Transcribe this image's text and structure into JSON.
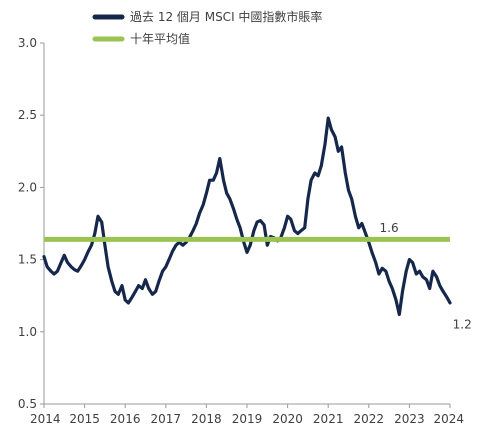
{
  "chart_data": {
    "type": "line",
    "title": "",
    "xlabel": "",
    "ylabel": "",
    "xlim": [
      2014,
      2024
    ],
    "ylim": [
      0.5,
      3.0
    ],
    "grid": false,
    "legend_position": "top-left",
    "x_ticks": [
      "2014",
      "2015",
      "2016",
      "2017",
      "2018",
      "2019",
      "2020",
      "2021",
      "2022",
      "2023",
      "2024"
    ],
    "y_ticks": [
      "0.5",
      "1.0",
      "1.5",
      "2.0",
      "2.5",
      "3.0"
    ],
    "colors": {
      "pb": "#15284b",
      "avg": "#9bc353",
      "text": "#3f3f3f",
      "axis": "#9a9a9a"
    },
    "series": [
      {
        "name": "過去 12 個月 MSCI 中國指數市賬率",
        "key": "pb",
        "points": [
          [
            2014.0,
            1.52
          ],
          [
            2014.08,
            1.45
          ],
          [
            2014.17,
            1.42
          ],
          [
            2014.25,
            1.4
          ],
          [
            2014.33,
            1.42
          ],
          [
            2014.42,
            1.48
          ],
          [
            2014.5,
            1.53
          ],
          [
            2014.58,
            1.48
          ],
          [
            2014.67,
            1.45
          ],
          [
            2014.75,
            1.43
          ],
          [
            2014.83,
            1.42
          ],
          [
            2014.92,
            1.46
          ],
          [
            2015.0,
            1.5
          ],
          [
            2015.08,
            1.55
          ],
          [
            2015.17,
            1.6
          ],
          [
            2015.25,
            1.68
          ],
          [
            2015.33,
            1.8
          ],
          [
            2015.42,
            1.76
          ],
          [
            2015.5,
            1.6
          ],
          [
            2015.58,
            1.45
          ],
          [
            2015.67,
            1.35
          ],
          [
            2015.75,
            1.28
          ],
          [
            2015.83,
            1.26
          ],
          [
            2015.92,
            1.32
          ],
          [
            2016.0,
            1.22
          ],
          [
            2016.08,
            1.2
          ],
          [
            2016.17,
            1.24
          ],
          [
            2016.25,
            1.28
          ],
          [
            2016.33,
            1.32
          ],
          [
            2016.42,
            1.3
          ],
          [
            2016.5,
            1.36
          ],
          [
            2016.58,
            1.3
          ],
          [
            2016.67,
            1.26
          ],
          [
            2016.75,
            1.28
          ],
          [
            2016.83,
            1.35
          ],
          [
            2016.92,
            1.42
          ],
          [
            2017.0,
            1.45
          ],
          [
            2017.08,
            1.5
          ],
          [
            2017.17,
            1.56
          ],
          [
            2017.25,
            1.6
          ],
          [
            2017.33,
            1.62
          ],
          [
            2017.42,
            1.6
          ],
          [
            2017.5,
            1.62
          ],
          [
            2017.58,
            1.65
          ],
          [
            2017.67,
            1.7
          ],
          [
            2017.75,
            1.75
          ],
          [
            2017.83,
            1.82
          ],
          [
            2017.92,
            1.88
          ],
          [
            2018.0,
            1.96
          ],
          [
            2018.08,
            2.05
          ],
          [
            2018.17,
            2.05
          ],
          [
            2018.25,
            2.1
          ],
          [
            2018.33,
            2.2
          ],
          [
            2018.42,
            2.05
          ],
          [
            2018.5,
            1.96
          ],
          [
            2018.58,
            1.92
          ],
          [
            2018.67,
            1.85
          ],
          [
            2018.75,
            1.78
          ],
          [
            2018.83,
            1.72
          ],
          [
            2018.92,
            1.62
          ],
          [
            2019.0,
            1.55
          ],
          [
            2019.08,
            1.6
          ],
          [
            2019.17,
            1.7
          ],
          [
            2019.25,
            1.76
          ],
          [
            2019.33,
            1.77
          ],
          [
            2019.42,
            1.74
          ],
          [
            2019.5,
            1.6
          ],
          [
            2019.58,
            1.66
          ],
          [
            2019.67,
            1.65
          ],
          [
            2019.75,
            1.63
          ],
          [
            2019.83,
            1.65
          ],
          [
            2019.92,
            1.72
          ],
          [
            2020.0,
            1.8
          ],
          [
            2020.08,
            1.78
          ],
          [
            2020.17,
            1.7
          ],
          [
            2020.25,
            1.68
          ],
          [
            2020.33,
            1.7
          ],
          [
            2020.42,
            1.72
          ],
          [
            2020.5,
            1.92
          ],
          [
            2020.58,
            2.05
          ],
          [
            2020.67,
            2.1
          ],
          [
            2020.75,
            2.08
          ],
          [
            2020.83,
            2.15
          ],
          [
            2020.92,
            2.3
          ],
          [
            2021.0,
            2.48
          ],
          [
            2021.08,
            2.4
          ],
          [
            2021.17,
            2.35
          ],
          [
            2021.25,
            2.25
          ],
          [
            2021.33,
            2.28
          ],
          [
            2021.42,
            2.1
          ],
          [
            2021.5,
            1.98
          ],
          [
            2021.58,
            1.92
          ],
          [
            2021.67,
            1.8
          ],
          [
            2021.75,
            1.72
          ],
          [
            2021.83,
            1.75
          ],
          [
            2021.92,
            1.68
          ],
          [
            2022.0,
            1.62
          ],
          [
            2022.08,
            1.55
          ],
          [
            2022.17,
            1.48
          ],
          [
            2022.25,
            1.4
          ],
          [
            2022.33,
            1.44
          ],
          [
            2022.42,
            1.42
          ],
          [
            2022.5,
            1.35
          ],
          [
            2022.58,
            1.3
          ],
          [
            2022.67,
            1.22
          ],
          [
            2022.75,
            1.12
          ],
          [
            2022.83,
            1.28
          ],
          [
            2022.92,
            1.42
          ],
          [
            2023.0,
            1.5
          ],
          [
            2023.08,
            1.48
          ],
          [
            2023.17,
            1.4
          ],
          [
            2023.25,
            1.42
          ],
          [
            2023.33,
            1.38
          ],
          [
            2023.42,
            1.36
          ],
          [
            2023.5,
            1.3
          ],
          [
            2023.58,
            1.42
          ],
          [
            2023.67,
            1.38
          ],
          [
            2023.75,
            1.32
          ],
          [
            2023.83,
            1.28
          ],
          [
            2023.92,
            1.24
          ],
          [
            2024.0,
            1.2
          ]
        ]
      },
      {
        "name": "十年平均值",
        "key": "avg",
        "points": [
          [
            2014.0,
            1.64
          ],
          [
            2024.0,
            1.64
          ]
        ]
      }
    ],
    "annotations": [
      {
        "text": "1.6",
        "x": 2022.5,
        "y": 1.72
      },
      {
        "text": "1.2",
        "x": 2024.3,
        "y": 1.05
      }
    ]
  }
}
